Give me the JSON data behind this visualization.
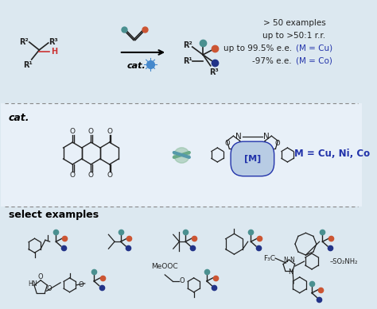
{
  "bg_color": "#dce8f0",
  "mid_bg": "#e8f0f8",
  "text_color_blue": "#2233aa",
  "text_color_red": "#cc0000",
  "divider_color": "#888888",
  "title_text": "select examples",
  "cat_text": "cat.",
  "M_text": "M = Cu, Ni, Co",
  "figsize": [
    4.74,
    3.89
  ],
  "dpi": 100,
  "teal": "#4a9090",
  "orange": "#cc5533",
  "blue_dark": "#223388",
  "red_motif": "#cc3322",
  "col": "#222222"
}
